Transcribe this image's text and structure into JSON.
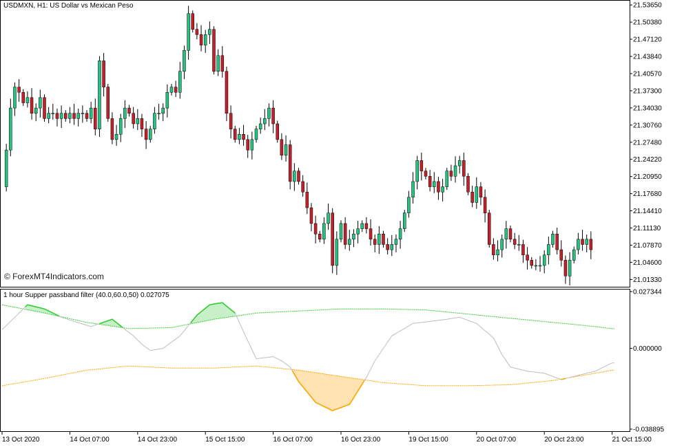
{
  "header": {
    "symbol_line": "USDMXN, H1:  US Dollar vs Mexican Peso",
    "indicator_line": "1 hour Supper passband filter (40.0,60.0,50) 0.027075",
    "watermark": "© ForexMT4Indicators.com"
  },
  "colors": {
    "bull": "#26c281",
    "bear": "#c0212b",
    "wick": "#000000",
    "filter_line": "#bdbdbd",
    "upper_band": "#33cc33",
    "lower_band": "#ffa500",
    "upper_fill": "#c8f0c8",
    "lower_fill": "#ffe3b3"
  },
  "chart_data": [
    {
      "type": "candlestick",
      "title": "USDMXN, H1:  US Dollar vs Mexican Peso",
      "y_tick_labels": [
        "21.53650",
        "21.50380",
        "21.47120",
        "21.43840",
        "21.40570",
        "21.37300",
        "21.34030",
        "21.30760",
        "21.27480",
        "21.24220",
        "21.20950",
        "21.17680",
        "21.14410",
        "21.11130",
        "21.07870",
        "21.04600",
        "21.01330"
      ],
      "y_ticks": [
        21.5365,
        21.5038,
        21.4712,
        21.4384,
        21.4057,
        21.373,
        21.3403,
        21.3076,
        21.2748,
        21.2422,
        21.2095,
        21.1768,
        21.1441,
        21.1113,
        21.0787,
        21.046,
        21.0133
      ],
      "x_tick_labels": [
        "13 Oct 2020",
        "14 Oct 07:00",
        "14 Oct 23:00",
        "15 Oct 15:00",
        "16 Oct 07:00",
        "16 Oct 23:00",
        "19 Oct 15:00",
        "20 Oct 07:00",
        "20 Oct 23:00",
        "21 Oct 15:00"
      ],
      "x_tick_bars": [
        0,
        16,
        32,
        48,
        64,
        80,
        96,
        112,
        128,
        144
      ],
      "ylim": [
        21.002,
        21.542
      ],
      "grid": false,
      "close_path": [
        21.19,
        21.26,
        21.34,
        21.38,
        21.37,
        21.35,
        21.36,
        21.33,
        21.34,
        21.36,
        21.32,
        21.33,
        21.33,
        21.32,
        21.33,
        21.32,
        21.33,
        21.32,
        21.33,
        21.33,
        21.32,
        21.34,
        21.3,
        21.43,
        21.38,
        21.32,
        21.28,
        21.29,
        21.32,
        21.34,
        21.33,
        21.31,
        21.32,
        21.3,
        21.28,
        21.3,
        21.33,
        21.33,
        21.34,
        21.37,
        21.38,
        21.37,
        21.41,
        21.45,
        21.52,
        21.49,
        21.48,
        21.46,
        21.48,
        21.49,
        21.41,
        21.44,
        21.41,
        21.33,
        21.3,
        21.28,
        21.29,
        21.28,
        21.26,
        21.28,
        21.3,
        21.31,
        21.32,
        21.34,
        21.31,
        21.28,
        21.25,
        21.27,
        21.2,
        21.22,
        21.2,
        21.18,
        21.15,
        21.12,
        21.1,
        21.09,
        21.12,
        21.14,
        21.04,
        21.09,
        21.12,
        21.08,
        21.09,
        21.1,
        21.11,
        21.12,
        21.11,
        21.09,
        21.08,
        21.1,
        21.08,
        21.07,
        21.08,
        21.09,
        21.11,
        21.14,
        21.17,
        21.2,
        21.24,
        21.22,
        21.21,
        21.19,
        21.2,
        21.18,
        21.19,
        21.22,
        21.21,
        21.23,
        21.24,
        21.21,
        21.18,
        21.16,
        21.19,
        21.17,
        21.14,
        21.08,
        21.06,
        21.07,
        21.09,
        21.11,
        21.09,
        21.08,
        21.08,
        21.06,
        21.05,
        21.04,
        21.04,
        21.04,
        21.06,
        21.08,
        21.1,
        21.07,
        21.05,
        21.02,
        21.05,
        21.07,
        21.09,
        21.08,
        21.09,
        21.07
      ],
      "filter_ylim": [
        -0.038895,
        0.027344
      ],
      "filter_y_tick_labels": [
        "0.027344",
        "0.000000",
        "-0.038895"
      ],
      "filter_y_ticks": [
        0.027344,
        0.0,
        -0.038895
      ],
      "series": [
        {
          "name": "filter",
          "x": [
            0,
            6,
            10,
            14,
            17,
            21,
            26,
            31,
            33,
            35,
            38,
            42,
            46,
            49,
            52,
            55,
            57,
            60,
            64,
            66,
            68,
            70,
            74,
            78,
            82,
            86,
            88,
            92,
            97,
            101,
            105,
            108,
            112,
            116,
            118,
            120,
            124,
            128,
            132,
            136,
            140,
            144
          ],
          "values": [
            0.009,
            0.021,
            0.019,
            0.015,
            0.013,
            0.0105,
            0.014,
            0.006,
            0.002,
            -0.001,
            0.0,
            0.006,
            0.016,
            0.021,
            0.022,
            0.017,
            0.008,
            -0.005,
            -0.004,
            -0.006,
            -0.009,
            -0.016,
            -0.026,
            -0.03,
            -0.027,
            -0.014,
            -0.006,
            0.006,
            0.012,
            0.013,
            0.014,
            0.015,
            0.012,
            0.005,
            -0.003,
            -0.009,
            -0.011,
            -0.012,
            -0.015,
            -0.013,
            -0.011,
            -0.007
          ]
        },
        {
          "name": "upper band",
          "x": [
            0,
            10,
            20,
            30,
            40,
            50,
            60,
            70,
            80,
            90,
            100,
            110,
            120,
            130,
            140,
            144
          ],
          "values": [
            0.021,
            0.017,
            0.0125,
            0.0095,
            0.01,
            0.014,
            0.017,
            0.018,
            0.019,
            0.019,
            0.0185,
            0.0165,
            0.0145,
            0.0125,
            0.0105,
            0.0095
          ]
        },
        {
          "name": "lower band",
          "x": [
            0,
            10,
            20,
            30,
            40,
            50,
            60,
            70,
            80,
            90,
            100,
            110,
            120,
            130,
            140,
            144
          ],
          "values": [
            -0.018,
            -0.0145,
            -0.0105,
            -0.0085,
            -0.0095,
            -0.0095,
            -0.0085,
            -0.0105,
            -0.0135,
            -0.0165,
            -0.018,
            -0.018,
            -0.0175,
            -0.0155,
            -0.012,
            -0.0105
          ]
        }
      ]
    }
  ]
}
